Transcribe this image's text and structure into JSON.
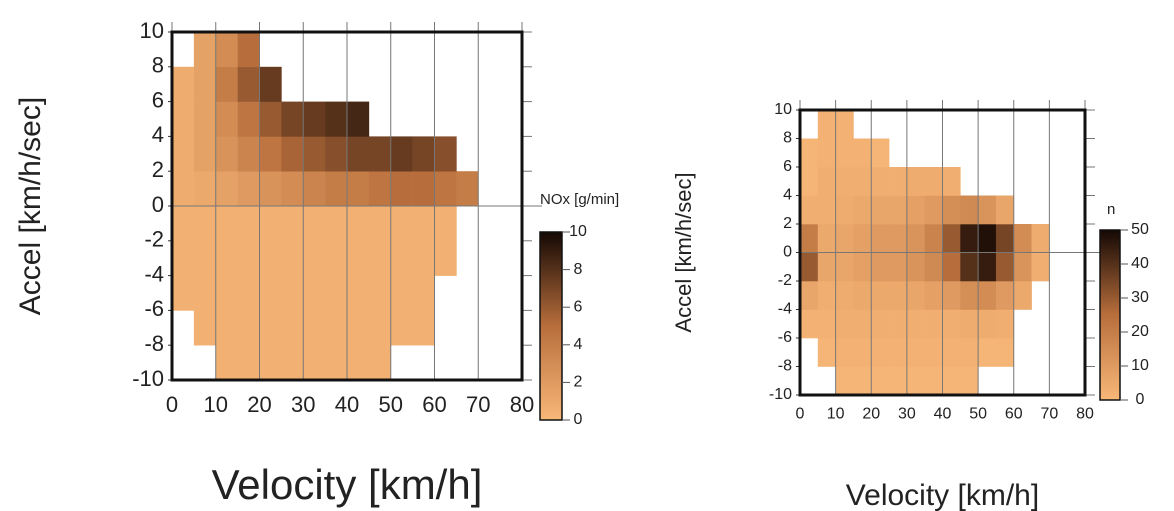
{
  "chart_data": [
    {
      "type": "heatmap",
      "xlabel": "Velocity [km/h]",
      "ylabel": "Accel [km/h/sec]",
      "colorbar_label": "NOx [g/min]",
      "xbins": [
        0,
        5,
        10,
        15,
        20,
        25,
        30,
        35,
        40,
        45,
        50,
        55,
        60,
        65,
        70,
        75,
        80
      ],
      "ybins": [
        -10,
        -8,
        -6,
        -4,
        -2,
        0,
        2,
        4,
        6,
        8,
        10
      ],
      "z": [
        [
          null,
          null,
          0.5,
          0.5,
          0.5,
          0.5,
          0.5,
          0.5,
          0.5,
          0.5,
          null,
          null,
          null,
          null,
          null,
          null
        ],
        [
          null,
          0.5,
          0.5,
          0.5,
          0.5,
          0.5,
          0.5,
          0.5,
          0.5,
          0.5,
          0.5,
          0.5,
          null,
          null,
          null,
          null
        ],
        [
          0.5,
          0.5,
          0.5,
          0.5,
          0.5,
          0.5,
          0.5,
          0.5,
          0.5,
          0.5,
          0.5,
          0.5,
          null,
          null,
          null,
          null
        ],
        [
          0.5,
          0.5,
          0.5,
          0.5,
          0.5,
          0.5,
          0.5,
          0.5,
          0.5,
          0.5,
          0.5,
          0.5,
          0.5,
          null,
          null,
          null
        ],
        [
          0.5,
          0.5,
          0.5,
          0.5,
          0.5,
          0.5,
          0.5,
          0.5,
          0.5,
          0.5,
          0.5,
          0.5,
          0.5,
          null,
          null,
          null
        ],
        [
          0.8,
          1,
          1.5,
          2,
          2.5,
          3,
          3.5,
          4,
          4,
          4.5,
          5,
          5,
          4.5,
          4,
          null,
          null
        ],
        [
          0.8,
          1.5,
          2.5,
          3.5,
          4.5,
          5.5,
          6,
          6.5,
          7,
          7,
          7.5,
          7,
          6.5,
          null,
          null,
          null
        ],
        [
          0.8,
          1.5,
          3,
          4.5,
          6,
          7,
          7.5,
          8,
          8.5,
          null,
          null,
          null,
          null,
          null,
          null,
          null
        ],
        [
          0.8,
          1.5,
          4,
          6,
          7.5,
          null,
          null,
          null,
          null,
          null,
          null,
          null,
          null,
          null,
          null,
          null
        ],
        [
          null,
          1.5,
          3,
          5,
          null,
          null,
          null,
          null,
          null,
          null,
          null,
          null,
          null,
          null,
          null,
          null
        ]
      ],
      "xlim": [
        0,
        80
      ],
      "xticks": [
        0,
        10,
        20,
        30,
        40,
        50,
        60,
        70,
        80
      ],
      "ylim": [
        -10,
        10
      ],
      "yticks": [
        -10,
        -8,
        -6,
        -4,
        -2,
        0,
        2,
        4,
        6,
        8,
        10
      ],
      "zlim": [
        0,
        10
      ],
      "zticks": [
        0,
        2,
        4,
        6,
        8,
        10
      ],
      "grid": true
    },
    {
      "type": "heatmap",
      "xlabel": "Velocity [km/h]",
      "ylabel": "Accel [km/h/sec]",
      "colorbar_label": "n",
      "xbins": [
        0,
        5,
        10,
        15,
        20,
        25,
        30,
        35,
        40,
        45,
        50,
        55,
        60,
        65,
        70,
        75,
        80
      ],
      "ybins": [
        -10,
        -8,
        -6,
        -4,
        -2,
        0,
        2,
        4,
        6,
        8,
        10
      ],
      "z": [
        [
          null,
          null,
          1,
          1,
          1,
          1,
          1,
          1,
          1,
          1,
          null,
          null,
          null,
          null,
          null,
          null
        ],
        [
          null,
          1,
          2,
          2,
          2,
          2,
          2,
          2,
          2,
          2,
          1,
          1,
          null,
          null,
          null,
          null
        ],
        [
          2,
          2,
          3,
          3,
          3,
          3,
          3,
          3,
          3,
          4,
          4,
          3,
          null,
          null,
          null,
          null
        ],
        [
          6,
          3,
          4,
          5,
          5,
          5,
          6,
          8,
          10,
          14,
          15,
          10,
          5,
          null,
          null,
          null
        ],
        [
          30,
          6,
          6,
          8,
          10,
          10,
          12,
          16,
          25,
          40,
          45,
          30,
          12,
          3,
          null,
          null
        ],
        [
          20,
          5,
          6,
          8,
          10,
          10,
          12,
          18,
          30,
          45,
          48,
          35,
          15,
          4,
          null,
          null
        ],
        [
          3,
          3,
          4,
          5,
          6,
          6,
          8,
          10,
          14,
          16,
          12,
          6,
          null,
          null,
          null,
          null
        ],
        [
          1,
          3,
          3,
          3,
          3,
          3,
          4,
          4,
          3,
          null,
          null,
          null,
          null,
          null,
          null,
          null
        ],
        [
          1,
          2,
          2,
          2,
          1,
          null,
          null,
          null,
          null,
          null,
          null,
          null,
          null,
          null,
          null,
          null
        ],
        [
          null,
          2,
          2,
          null,
          null,
          null,
          null,
          null,
          null,
          null,
          null,
          null,
          null,
          null,
          null,
          null
        ]
      ],
      "xlim": [
        0,
        80
      ],
      "xticks": [
        0,
        10,
        20,
        30,
        40,
        50,
        60,
        70,
        80
      ],
      "ylim": [
        -10,
        10
      ],
      "yticks": [
        -10,
        -8,
        -6,
        -4,
        -2,
        0,
        2,
        4,
        6,
        8,
        10
      ],
      "zlim": [
        0,
        50
      ],
      "zticks": [
        0,
        10,
        20,
        30,
        40,
        50
      ],
      "grid": true
    }
  ]
}
